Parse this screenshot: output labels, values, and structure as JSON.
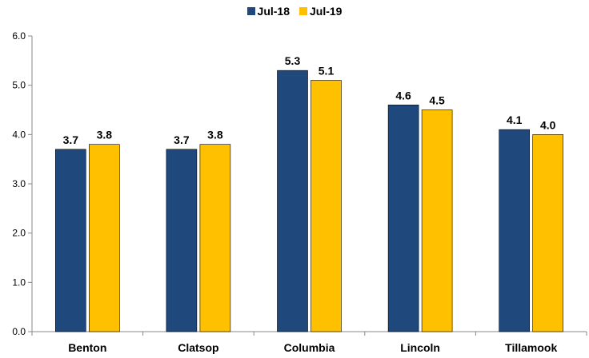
{
  "chart_data": {
    "type": "bar",
    "categories": [
      "Benton",
      "Clatsop",
      "Columbia",
      "Lincoln",
      "Tillamook"
    ],
    "series": [
      {
        "name": "Jul-18",
        "values": [
          3.7,
          3.7,
          5.3,
          4.6,
          4.1
        ],
        "labels": [
          "3.7",
          "3.7",
          "5.3",
          "4.6",
          "4.1"
        ],
        "color": "#1f497d"
      },
      {
        "name": "Jul-19",
        "values": [
          3.8,
          3.8,
          5.1,
          4.5,
          4.0
        ],
        "labels": [
          "3.8",
          "3.8",
          "5.1",
          "4.5",
          "4.0"
        ],
        "color": "#ffc000"
      }
    ],
    "ylim": [
      0,
      6
    ],
    "yticks": [
      "0.0",
      "1.0",
      "2.0",
      "3.0",
      "4.0",
      "5.0",
      "6.0"
    ],
    "title": "",
    "xlabel": "",
    "ylabel": "",
    "legend_position": "top-center",
    "grid": false
  }
}
